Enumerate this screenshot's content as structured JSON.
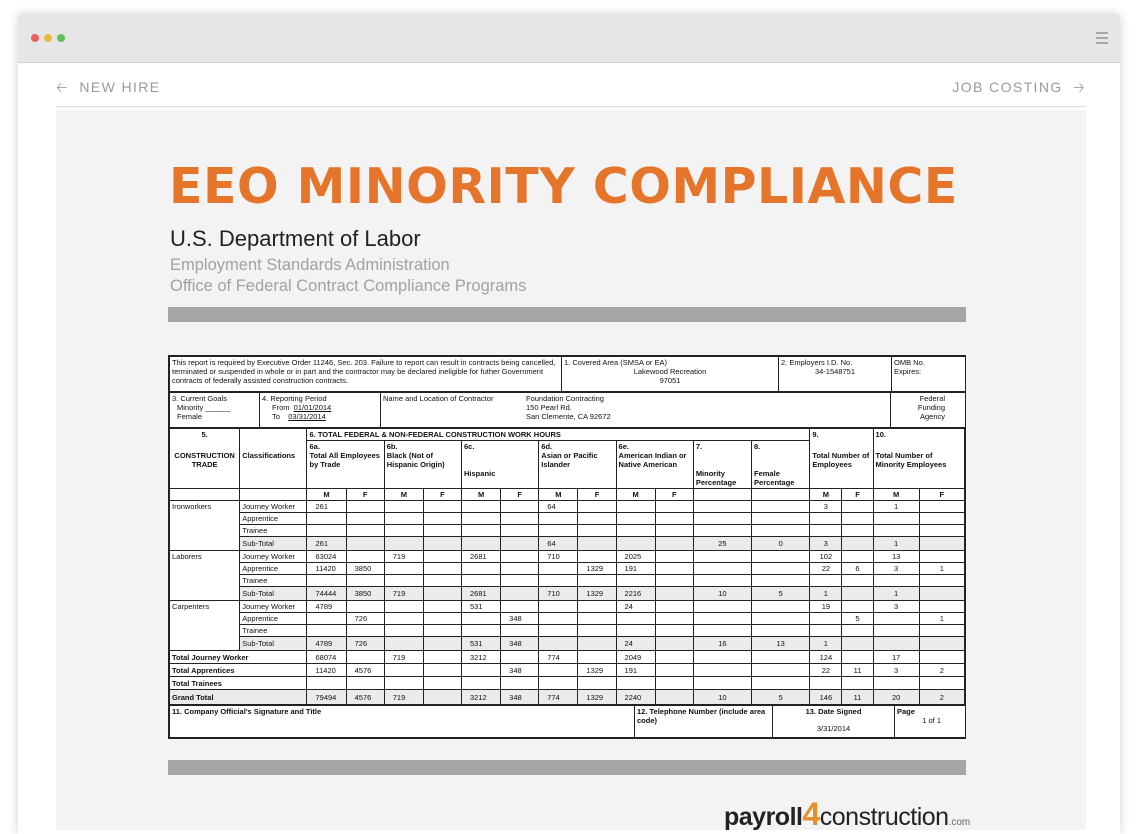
{
  "window": {
    "menu_icon": "hamburger-menu-icon"
  },
  "nav": {
    "prev_label": "NEW HIRE",
    "next_label": "JOB COSTING",
    "prev_icon": "arrow-left-icon",
    "next_icon": "arrow-right-icon"
  },
  "page": {
    "title": "EEO MINORITY COMPLIANCE",
    "agency": "U.S. Department of Labor",
    "sub1": "Employment Standards Administration",
    "sub2": "Office of Federal Contract Compliance Programs"
  },
  "colors": {
    "title": "#e5752a",
    "bar": "#a6a6a6",
    "logo_accent": "#e5902a"
  },
  "form": {
    "notice": "This report is required by Executive Order 11246, Sec. 203.  Failure to report can result in contracts being cancelled, terminated or suspended in whole or in part and the contractor may be declared ineligible for futher Government contracts of federally assisted construction contracts.",
    "covered_area_label": "1.  Covered Area (SMSA or EA)",
    "covered_area_value": "Lakewood Recreation",
    "covered_area_code": "97051",
    "employer_id_label": "2.  Employers I.D. No.",
    "employer_id_value": "34-1548751",
    "omb_label": "OMB No.",
    "expires_label": "Expires:",
    "goals_label": "3.  Current Goals",
    "goals_minority": "Minority",
    "goals_female": "Female",
    "period_label": "4.  Reporting Period",
    "period_from_label": "From",
    "period_from": "01/01/2014",
    "period_to_label": "To",
    "period_to": "03/31/2014",
    "contractor_label": "Name and Location of Contractor",
    "contractor_name": "Foundation Contracting",
    "contractor_addr1": "150 Pearl Rd.",
    "contractor_addr2": "San Clemente, CA 92672",
    "federal_funding": "Federal Funding Agency",
    "col5_num": "5.",
    "col5_label": "CONSTRUCTION TRADE",
    "classifications_label": "Classifications",
    "col6_label": "6.  TOTAL FEDERAL & NON-FEDERAL CONSTRUCTION WORK HOURS",
    "col9_num": "9.",
    "col9_label": "Total Number of Employees",
    "col10_num": "10.",
    "col10_label": "Total Number of Minority Employees",
    "col6a_num": "6a.",
    "col6a_label": "Total All Employees by Trade",
    "col6b_num": "6b.",
    "col6b_label": "Black (Not of Hispanic Origin)",
    "col6c_num": "6c.",
    "col6c_label": "Hispanic",
    "col6d_num": "6d.",
    "col6d_label": "Asian or Pacific Islander",
    "col6e_num": "6e.",
    "col6e_label": "American Indian or Native American",
    "col7_num": "7.",
    "col7_label": "Minority Percentage",
    "col8_num": "8.",
    "col8_label": "Female Percentage",
    "m_label": "M",
    "f_label": "F",
    "trades": [
      {
        "name": "Ironworkers",
        "rows": [
          {
            "label": "Journey Worker",
            "v": [
              "261",
              "",
              "",
              "",
              "",
              "",
              "64",
              "",
              "",
              "",
              "",
              "",
              "3",
              "",
              "1",
              ""
            ]
          },
          {
            "label": "Apprentice",
            "v": [
              "",
              "",
              "",
              "",
              "",
              "",
              "",
              "",
              "",
              "",
              "",
              "",
              "",
              "",
              "",
              ""
            ]
          },
          {
            "label": "Trainee",
            "v": [
              "",
              "",
              "",
              "",
              "",
              "",
              "",
              "",
              "",
              "",
              "",
              "",
              "",
              "",
              "",
              ""
            ]
          },
          {
            "label": "Sub-Total",
            "v": [
              "261",
              "",
              "",
              "",
              "",
              "",
              "64",
              "",
              "",
              "",
              "25",
              "0",
              "3",
              "",
              "1",
              ""
            ]
          }
        ]
      },
      {
        "name": "Laborers",
        "rows": [
          {
            "label": "Journey Worker",
            "v": [
              "63024",
              "",
              "719",
              "",
              "2681",
              "",
              "710",
              "",
              "2025",
              "",
              "",
              "",
              "102",
              "",
              "13",
              ""
            ]
          },
          {
            "label": "Apprentice",
            "v": [
              "11420",
              "3850",
              "",
              "",
              "",
              "",
              "",
              "1329",
              "191",
              "",
              "",
              "",
              "22",
              "6",
              "3",
              "1"
            ]
          },
          {
            "label": "Trainee",
            "v": [
              "",
              "",
              "",
              "",
              "",
              "",
              "",
              "",
              "",
              "",
              "",
              "",
              "",
              "",
              "",
              ""
            ]
          },
          {
            "label": "Sub-Total",
            "v": [
              "74444",
              "3850",
              "719",
              "",
              "2681",
              "",
              "710",
              "1329",
              "2216",
              "",
              "10",
              "5",
              "1",
              "",
              "1",
              ""
            ]
          }
        ]
      },
      {
        "name": "Carpenters",
        "rows": [
          {
            "label": "Journey Worker",
            "v": [
              "4789",
              "",
              "",
              "",
              "531",
              "",
              "",
              "",
              "24",
              "",
              "",
              "",
              "19",
              "",
              "3",
              ""
            ]
          },
          {
            "label": "Apprentice",
            "v": [
              "",
              "726",
              "",
              "",
              "",
              "348",
              "",
              "",
              "",
              "",
              "",
              "",
              "",
              "5",
              "",
              "1"
            ]
          },
          {
            "label": "Trainee",
            "v": [
              "",
              "",
              "",
              "",
              "",
              "",
              "",
              "",
              "",
              "",
              "",
              "",
              "",
              "",
              "",
              ""
            ]
          },
          {
            "label": "Sub-Total",
            "v": [
              "4789",
              "726",
              "",
              "",
              "531",
              "348",
              "",
              "",
              "24",
              "",
              "16",
              "13",
              "1",
              "",
              "",
              ""
            ]
          }
        ]
      }
    ],
    "totals": [
      {
        "label": "Total Journey Worker",
        "v": [
          "68074",
          "",
          "719",
          "",
          "3212",
          "",
          "774",
          "",
          "2049",
          "",
          "",
          "",
          "124",
          "",
          "17",
          ""
        ]
      },
      {
        "label": "Total Apprentices",
        "v": [
          "11420",
          "4576",
          "",
          "",
          "",
          "348",
          "",
          "1329",
          "191",
          "",
          "",
          "",
          "22",
          "11",
          "3",
          "2"
        ]
      },
      {
        "label": "Total Trainees",
        "v": [
          "",
          "",
          "",
          "",
          "",
          "",
          "",
          "",
          "",
          "",
          "",
          "",
          "",
          "",
          "",
          ""
        ]
      }
    ],
    "grand_total": {
      "label": "Grand Total",
      "v": [
        "79494",
        "4576",
        "719",
        "",
        "3212",
        "348",
        "774",
        "1329",
        "2240",
        "",
        "10",
        "5",
        "146",
        "11",
        "20",
        "2"
      ]
    },
    "signature_label": "11.  Company Official's Signature and Title",
    "phone_label": "12.  Telephone Number (include area code)",
    "date_label": "13. Date Signed",
    "date_value": "3/31/2014",
    "page_label": "Page",
    "page_value": "1 of 1"
  },
  "logo": {
    "part1": "payroll",
    "part2": "4",
    "part3": "construction",
    "part4": ".com"
  }
}
